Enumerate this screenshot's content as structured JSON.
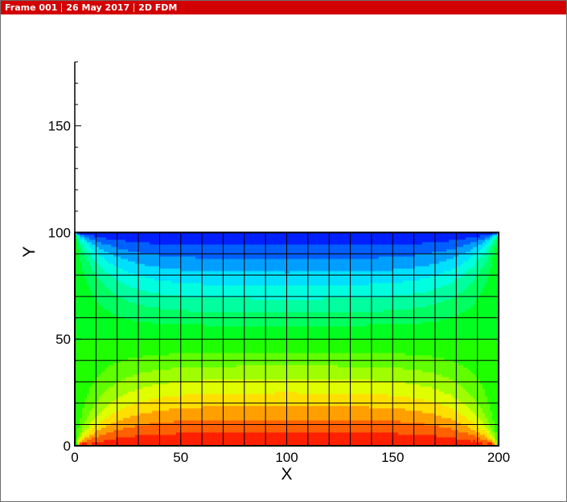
{
  "window": {
    "frame_label": "Frame 001",
    "date_label": "26 May 2017",
    "title_label": "2D FDM"
  },
  "chart_data": {
    "type": "heatmap",
    "xlabel": "X",
    "ylabel": "Y",
    "xlim": [
      0,
      200
    ],
    "ylim": [
      0,
      180
    ],
    "x_ticks": [
      0,
      50,
      100,
      150,
      200
    ],
    "y_ticks": [
      0,
      50,
      100,
      150
    ],
    "x_minor_step": 10,
    "y_minor_step": 10,
    "domain": {
      "x": [
        0,
        200
      ],
      "y": [
        0,
        100
      ]
    },
    "grid_step": 10,
    "grid_lines": true,
    "contour_levels": 16,
    "field": "laplace-style potential: high (red) at y=0, low (blue) at y=100, mid (green) at x=0 and x=200",
    "boundary_values": {
      "bottom": 1.0,
      "top": 0.0,
      "left": 0.5,
      "right": 0.5
    },
    "colormap": [
      "#0000ff",
      "#00ffff",
      "#00ff00",
      "#ffff00",
      "#ff0000"
    ]
  }
}
